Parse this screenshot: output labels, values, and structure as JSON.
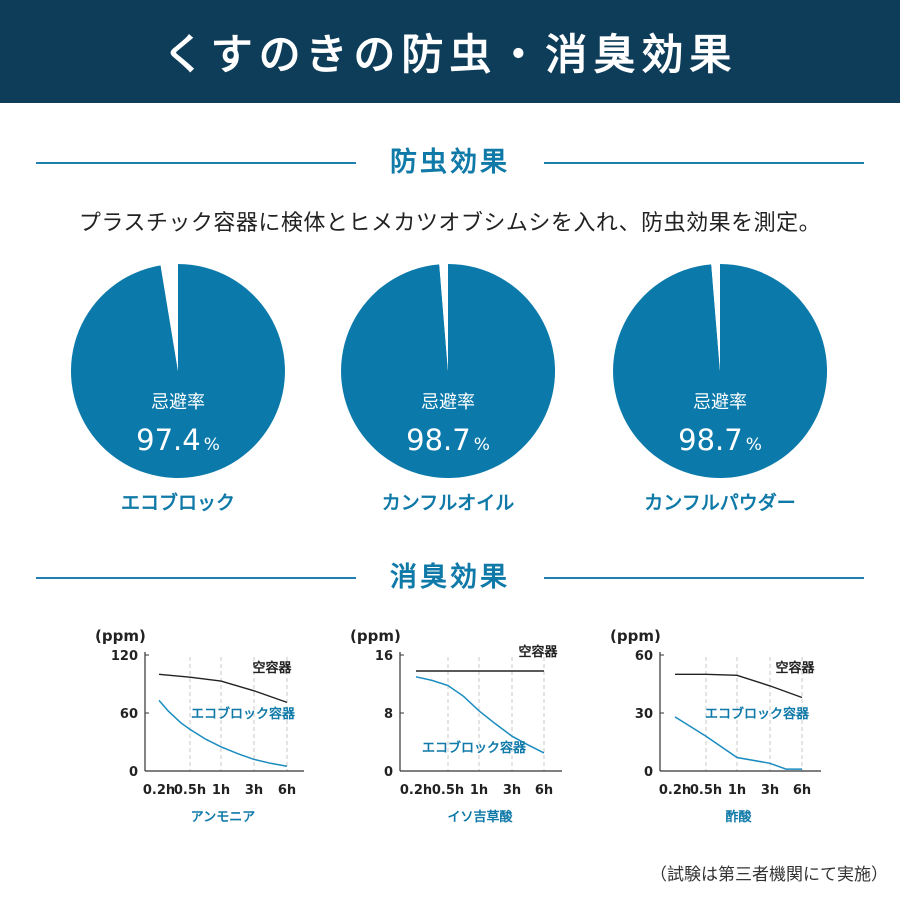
{
  "title": "くすのきの防虫・消臭効果",
  "insect_section": {
    "heading": "防虫効果",
    "description": "プラスチック容器に検体とヒメカツオブシムシを入れ、防虫効果を測定。"
  },
  "odor_section": {
    "heading": "消臭効果"
  },
  "footnote": "（試験は第三者機関にて実施）",
  "colors": {
    "header_bg": "#0e3d5a",
    "accent": "#0f79a8",
    "pie_fill": "#0b7aab",
    "line_treated": "#1a8cc0",
    "line_empty": "#222222"
  },
  "chart_data": [
    {
      "type": "pie",
      "name": "エコブロック",
      "label": "忌避率",
      "value": 97.4,
      "value_text": "97.4",
      "unit": "%"
    },
    {
      "type": "pie",
      "name": "カンフルオイル",
      "label": "忌避率",
      "value": 98.7,
      "value_text": "98.7",
      "unit": "%"
    },
    {
      "type": "pie",
      "name": "カンフルパウダー",
      "label": "忌避率",
      "value": 98.7,
      "value_text": "98.7",
      "unit": "%"
    },
    {
      "type": "line",
      "title": "アンモニア",
      "ylabel": "(ppm)",
      "ylim": [
        0,
        120
      ],
      "yticks": [
        0,
        60,
        120
      ],
      "categories": [
        "0.2h",
        "0.5h",
        "1h",
        "3h",
        "6h"
      ],
      "x": [
        0,
        1,
        2,
        3,
        4
      ],
      "series": [
        {
          "name": "空容器",
          "x": [
            0,
            1,
            2,
            3,
            4
          ],
          "values": [
            100,
            97,
            93,
            83,
            71
          ]
        },
        {
          "name": "エコブロック容器",
          "x": [
            0,
            0.3,
            0.7,
            1,
            1.5,
            2,
            2.5,
            3,
            3.5,
            4
          ],
          "values": [
            73,
            62,
            50,
            43,
            33,
            25,
            18,
            12,
            8,
            5
          ]
        }
      ]
    },
    {
      "type": "line",
      "title": "イソ吉草酸",
      "ylabel": "(ppm)",
      "ylim": [
        0,
        16
      ],
      "yticks": [
        0,
        8,
        16
      ],
      "categories": [
        "0.2h",
        "0.5h",
        "1h",
        "3h",
        "6h"
      ],
      "x": [
        0,
        1,
        2,
        3,
        4
      ],
      "series": [
        {
          "name": "空容器",
          "x": [
            0,
            1,
            2,
            3,
            4
          ],
          "values": [
            13.8,
            13.8,
            13.8,
            13.8,
            13.8
          ]
        },
        {
          "name": "エコブロック容器",
          "x": [
            0,
            0.5,
            1,
            1.5,
            2,
            2.5,
            3,
            3.5,
            4
          ],
          "values": [
            13,
            12.5,
            11.8,
            10.3,
            8.3,
            6.5,
            4.8,
            3.6,
            2.5
          ]
        }
      ]
    },
    {
      "type": "line",
      "title": "酢酸",
      "ylabel": "(ppm)",
      "ylim": [
        0,
        60
      ],
      "yticks": [
        0,
        30,
        60
      ],
      "categories": [
        "0.2h",
        "0.5h",
        "1h",
        "3h",
        "6h"
      ],
      "x": [
        0,
        1,
        2,
        3,
        4
      ],
      "series": [
        {
          "name": "空容器",
          "x": [
            0,
            1,
            2,
            3,
            4
          ],
          "values": [
            50,
            50,
            49.5,
            44,
            38
          ]
        },
        {
          "name": "エコブロック容器",
          "x": [
            0,
            1,
            2,
            3,
            3.5,
            4
          ],
          "values": [
            28,
            18,
            7,
            4,
            1,
            1
          ]
        }
      ]
    }
  ]
}
